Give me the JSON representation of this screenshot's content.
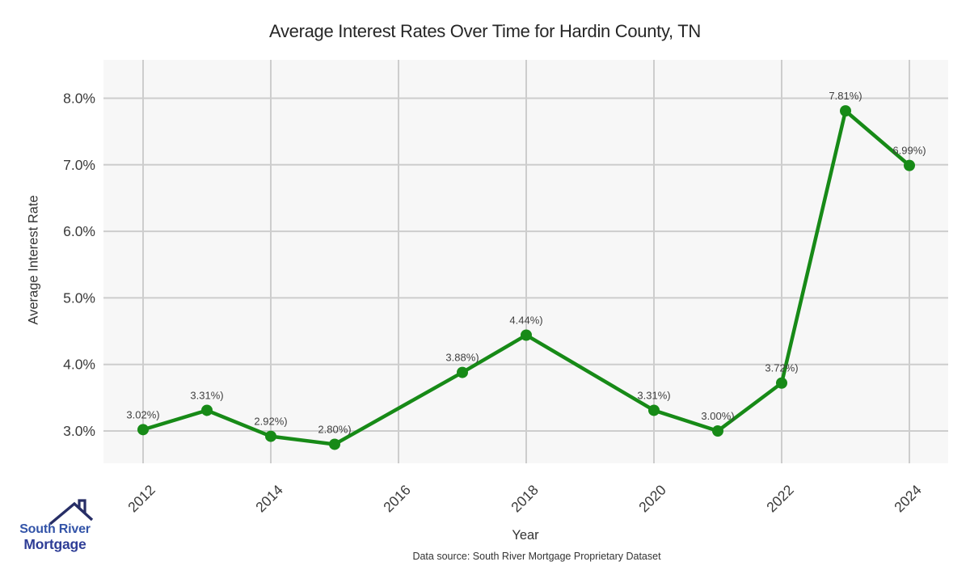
{
  "title": "Average Interest Rates Over Time for Hardin County, TN",
  "axes": {
    "x_label": "Year",
    "y_label": "Average Interest Rate"
  },
  "footer": {
    "source_text": "Data source: South River Mortgage Proprietary Dataset"
  },
  "logo": {
    "line1": "South River",
    "line2": "Mortgage"
  },
  "colors": {
    "line": "#178a17",
    "marker": "#178a17",
    "grid": "#cdcdcd",
    "panel": "#f7f7f7",
    "tick_text": "#3a3a3a",
    "point_label_text": "#404040",
    "title_text": "#262626",
    "logo_primary": "#3354a8",
    "logo_secondary": "#2e3d96",
    "logo_roof": "#272e66"
  },
  "chart_data": {
    "type": "line",
    "title": "Average Interest Rates Over Time for Hardin County, TN",
    "xlabel": "Year",
    "ylabel": "Average Interest Rate",
    "x": [
      2012,
      2013,
      2014,
      2015,
      2017,
      2018,
      2020,
      2021,
      2022,
      2023,
      2024
    ],
    "values": [
      3.02,
      3.31,
      2.92,
      2.8,
      3.88,
      4.44,
      3.31,
      3.0,
      3.72,
      7.81,
      6.99
    ],
    "point_labels": [
      "3.02%)",
      "3.31%)",
      "2.92%)",
      "2.80%)",
      "3.88%)",
      "4.44%)",
      "3.31%)",
      "3.00%)",
      "3.72%)",
      "7.81%)",
      "6.99%)"
    ],
    "x_tick_values": [
      2012,
      2014,
      2016,
      2018,
      2020,
      2022,
      2024
    ],
    "x_tick_labels": [
      "2012",
      "2014",
      "2016",
      "2018",
      "2020",
      "2022",
      "2024"
    ],
    "y_tick_values": [
      3,
      4,
      5,
      6,
      7,
      8
    ],
    "y_tick_labels": [
      "3.0%",
      "4.0%",
      "5.0%",
      "6.0%",
      "7.0%",
      "8.0%"
    ],
    "xlim": [
      2011.4,
      2024.6
    ],
    "ylim": [
      2.51,
      8.56
    ],
    "grid": true,
    "legend": "none",
    "missing_years_interpolated": [
      2016,
      2019
    ]
  }
}
